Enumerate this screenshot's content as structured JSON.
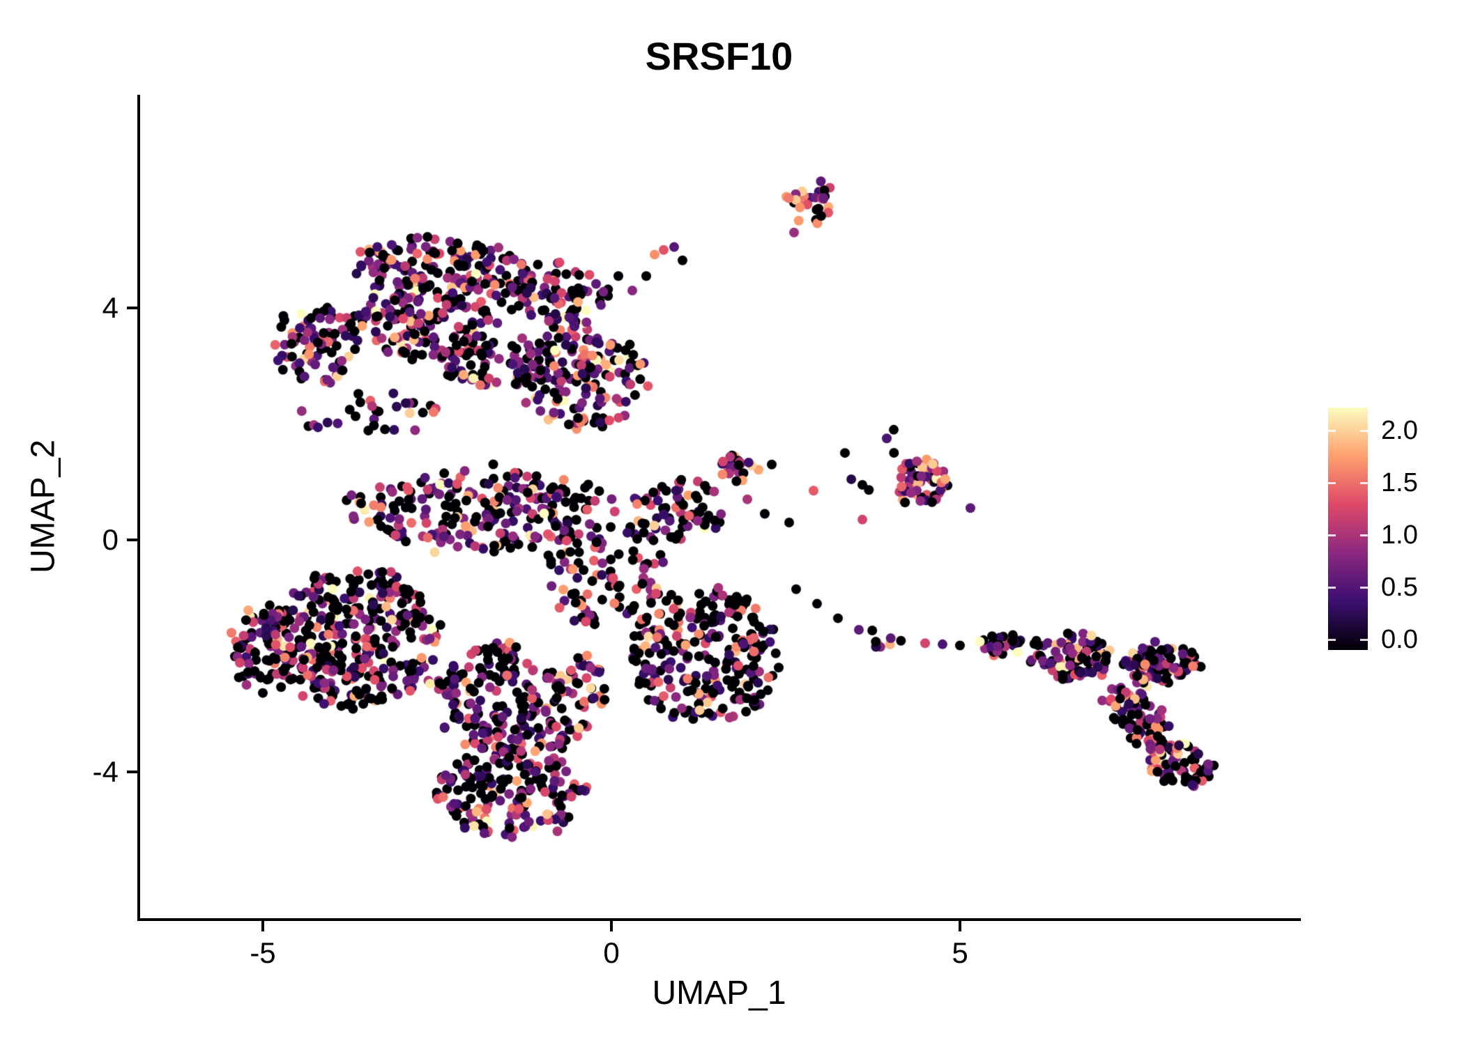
{
  "title": "SRSF10",
  "axes": {
    "x": {
      "label": "UMAP_1",
      "ticks": [
        {
          "value": -5,
          "label": "-5"
        },
        {
          "value": 0,
          "label": "0"
        },
        {
          "value": 5,
          "label": "5"
        }
      ]
    },
    "y": {
      "label": "UMAP_2",
      "ticks": [
        {
          "value": 4,
          "label": "4"
        },
        {
          "value": 0,
          "label": "0"
        },
        {
          "value": -4,
          "label": "-4"
        }
      ]
    }
  },
  "legend": {
    "ticks": [
      {
        "value": 2.0,
        "label": "2.0"
      },
      {
        "value": 1.5,
        "label": "1.5"
      },
      {
        "value": 1.0,
        "label": "1.0"
      },
      {
        "value": 0.5,
        "label": "0.5"
      },
      {
        "value": 0.0,
        "label": "0.0"
      }
    ],
    "bar_domain": [
      -0.1,
      2.22
    ]
  },
  "colors": {
    "axis": "#000000",
    "text": "#000000",
    "background": "#ffffff"
  },
  "chart_data": {
    "type": "scatter",
    "title": "SRSF10",
    "xlabel": "UMAP_1",
    "ylabel": "UMAP_2",
    "xlim": [
      -6.8,
      9.9
    ],
    "ylim": [
      -7.1,
      7.7
    ],
    "x_ticks": [
      -5,
      0,
      5
    ],
    "y_ticks": [
      -4,
      0,
      4
    ],
    "grid": false,
    "legend_position": "right",
    "point_radius_px": 7,
    "seed": 1337,
    "color_scale": {
      "name": "magma",
      "value_domain": [
        0,
        2.1
      ],
      "legend_ticks": [
        0.0,
        0.5,
        1.0,
        1.5,
        2.0
      ],
      "stops": [
        {
          "t": 0.0,
          "c": "#000004"
        },
        {
          "t": 0.2,
          "c": "#3b0f70"
        },
        {
          "t": 0.4,
          "c": "#8c2981"
        },
        {
          "t": 0.6,
          "c": "#de4968"
        },
        {
          "t": 0.8,
          "c": "#fe9f6d"
        },
        {
          "t": 1.0,
          "c": "#fcfdbf"
        }
      ]
    },
    "value_bins": [
      [
        0,
        0
      ],
      [
        0.25,
        0.9
      ],
      [
        0.9,
        1.45
      ],
      [
        1.45,
        1.9
      ],
      [
        1.9,
        2.2
      ]
    ],
    "clusters": [
      {
        "name": "upper-top-band",
        "cx": -2.4,
        "cy": 4.65,
        "rx": 1.35,
        "ry": 0.55,
        "rot": -5,
        "n": 170,
        "mix": [
          0.36,
          0.34,
          0.17,
          0.1,
          0.03
        ]
      },
      {
        "name": "upper-left-arm",
        "cx": -4.25,
        "cy": 3.35,
        "rx": 0.6,
        "ry": 0.65,
        "rot": 0,
        "n": 80,
        "mix": [
          0.36,
          0.34,
          0.17,
          0.1,
          0.03
        ]
      },
      {
        "name": "upper-mid-band",
        "cx": -2.7,
        "cy": 3.7,
        "rx": 1.2,
        "ry": 0.55,
        "rot": -8,
        "n": 130,
        "mix": [
          0.36,
          0.34,
          0.17,
          0.1,
          0.03
        ]
      },
      {
        "name": "upper-right-blob",
        "cx": -0.45,
        "cy": 2.75,
        "rx": 0.95,
        "ry": 0.85,
        "rot": 0,
        "n": 150,
        "mix": [
          0.36,
          0.34,
          0.17,
          0.1,
          0.03
        ]
      },
      {
        "name": "upper-connector",
        "cx": -1.6,
        "cy": 3.1,
        "rx": 0.9,
        "ry": 0.5,
        "rot": 0,
        "n": 70,
        "mix": [
          0.36,
          0.34,
          0.17,
          0.1,
          0.03
        ]
      },
      {
        "name": "upper-right-top",
        "cx": -0.75,
        "cy": 4.2,
        "rx": 0.8,
        "ry": 0.55,
        "rot": -20,
        "n": 80,
        "mix": [
          0.36,
          0.34,
          0.17,
          0.1,
          0.03
        ]
      },
      {
        "name": "bridge-left",
        "cx": -3.5,
        "cy": 2.15,
        "rx": 1.0,
        "ry": 0.35,
        "rot": 0,
        "n": 30,
        "mix": [
          0.44,
          0.33,
          0.14,
          0.07,
          0.02
        ]
      },
      {
        "name": "main-upper-band",
        "cx": -1.9,
        "cy": 0.55,
        "rx": 1.9,
        "ry": 0.75,
        "rot": 0,
        "n": 230,
        "mix": [
          0.44,
          0.33,
          0.14,
          0.07,
          0.02
        ]
      },
      {
        "name": "main-left-mass",
        "cx": -3.7,
        "cy": -1.7,
        "rx": 1.25,
        "ry": 1.2,
        "rot": 0,
        "n": 340,
        "mix": [
          0.44,
          0.33,
          0.14,
          0.07,
          0.02
        ]
      },
      {
        "name": "main-center-mass",
        "cx": -1.3,
        "cy": -2.7,
        "rx": 1.3,
        "ry": 1.0,
        "rot": 0,
        "n": 270,
        "mix": [
          0.44,
          0.33,
          0.14,
          0.07,
          0.02
        ]
      },
      {
        "name": "main-bottom",
        "cx": -1.5,
        "cy": -4.35,
        "rx": 1.15,
        "ry": 0.75,
        "rot": 0,
        "n": 170,
        "mix": [
          0.44,
          0.33,
          0.14,
          0.07,
          0.02
        ]
      },
      {
        "name": "main-right-lobe",
        "cx": 1.35,
        "cy": -2.0,
        "rx": 1.05,
        "ry": 1.15,
        "rot": 0,
        "n": 250,
        "mix": [
          0.54,
          0.26,
          0.12,
          0.06,
          0.02
        ]
      },
      {
        "name": "main-right-tip",
        "cx": 0.95,
        "cy": 0.5,
        "rx": 0.7,
        "ry": 0.55,
        "rot": 0,
        "n": 70,
        "mix": [
          0.44,
          0.33,
          0.14,
          0.07,
          0.02
        ]
      },
      {
        "name": "main-mid-fill",
        "cx": -0.1,
        "cy": -0.6,
        "rx": 0.9,
        "ry": 0.9,
        "rot": 0,
        "n": 90,
        "mix": [
          0.44,
          0.33,
          0.14,
          0.07,
          0.02
        ]
      },
      {
        "name": "main-left-edge",
        "cx": -4.9,
        "cy": -1.9,
        "rx": 0.5,
        "ry": 0.8,
        "rot": 0,
        "n": 80,
        "mix": [
          0.44,
          0.33,
          0.14,
          0.07,
          0.02
        ]
      },
      {
        "name": "top-small",
        "cx": 2.85,
        "cy": 5.85,
        "rx": 0.3,
        "ry": 0.42,
        "rot": 0,
        "n": 30,
        "mix": [
          0.22,
          0.18,
          0.25,
          0.28,
          0.07
        ]
      },
      {
        "name": "mid-small",
        "cx": 1.85,
        "cy": 1.2,
        "rx": 0.25,
        "ry": 0.35,
        "rot": 0,
        "n": 24,
        "mix": [
          0.3,
          0.27,
          0.25,
          0.18,
          0.0
        ]
      },
      {
        "name": "right-mid-blob",
        "cx": 4.45,
        "cy": 1.0,
        "rx": 0.4,
        "ry": 0.38,
        "rot": 0,
        "n": 55,
        "mix": [
          0.22,
          0.28,
          0.25,
          0.2,
          0.05
        ]
      },
      {
        "name": "right-mid-scatter",
        "cx": 3.95,
        "cy": 1.05,
        "rx": 0.55,
        "ry": 0.5,
        "rot": 0,
        "n": 10,
        "mix": [
          0.3,
          0.27,
          0.25,
          0.18,
          0.0
        ]
      },
      {
        "name": "chain-pair",
        "cx": 3.88,
        "cy": -1.72,
        "rx": 0.28,
        "ry": 0.16,
        "rot": 0,
        "n": 8,
        "mix": [
          0.45,
          0.3,
          0.15,
          0.1,
          0.0
        ]
      },
      {
        "name": "right-arm-start",
        "cx": 5.6,
        "cy": -1.8,
        "rx": 0.33,
        "ry": 0.2,
        "rot": 0,
        "n": 30,
        "mix": [
          0.46,
          0.32,
          0.13,
          0.07,
          0.02
        ]
      },
      {
        "name": "right-arm-mid",
        "cx": 6.6,
        "cy": -2.0,
        "rx": 0.6,
        "ry": 0.38,
        "rot": -5,
        "n": 100,
        "mix": [
          0.46,
          0.32,
          0.13,
          0.07,
          0.02
        ]
      },
      {
        "name": "right-arm-east",
        "cx": 7.9,
        "cy": -2.15,
        "rx": 0.55,
        "ry": 0.33,
        "rot": 10,
        "n": 80,
        "mix": [
          0.46,
          0.32,
          0.13,
          0.07,
          0.02
        ]
      },
      {
        "name": "right-arm-descent",
        "cx": 7.55,
        "cy": -3.05,
        "rx": 0.65,
        "ry": 0.33,
        "rot": -55,
        "n": 80,
        "mix": [
          0.46,
          0.32,
          0.13,
          0.07,
          0.02
        ]
      },
      {
        "name": "right-arm-tip",
        "cx": 8.15,
        "cy": -3.85,
        "rx": 0.5,
        "ry": 0.35,
        "rot": -20,
        "n": 70,
        "mix": [
          0.46,
          0.32,
          0.13,
          0.07,
          0.02
        ]
      }
    ],
    "holes": [
      {
        "cx": -0.85,
        "cy": -1.75,
        "rx": 0.42,
        "ry": 0.48
      }
    ],
    "extra_points": [
      [
        0.5,
        4.55,
        0
      ],
      [
        0.75,
        5.0,
        1.3
      ],
      [
        0.62,
        4.92,
        1.6
      ],
      [
        0.9,
        5.05,
        0.55
      ],
      [
        1.02,
        4.82,
        0
      ],
      [
        0.3,
        4.3,
        0.8
      ],
      [
        0.1,
        4.55,
        0
      ],
      [
        -0.15,
        4.05,
        0.6
      ],
      [
        2.62,
        5.3,
        0.9
      ],
      [
        2.55,
        0.3,
        0
      ],
      [
        2.9,
        0.85,
        1.35
      ],
      [
        3.35,
        1.5,
        0
      ],
      [
        3.6,
        0.35,
        1.2
      ],
      [
        5.15,
        0.55,
        0.6
      ],
      [
        4.05,
        1.9,
        0
      ],
      [
        3.95,
        1.75,
        0.5
      ],
      [
        2.65,
        -0.85,
        0
      ],
      [
        2.95,
        -1.1,
        0
      ],
      [
        3.25,
        -1.35,
        0
      ],
      [
        3.55,
        -1.55,
        0.6
      ],
      [
        4.5,
        -1.78,
        1.2
      ],
      [
        4.75,
        -1.8,
        0.5
      ],
      [
        5.0,
        -1.82,
        0
      ],
      [
        1.95,
        0.7,
        1.0
      ],
      [
        2.2,
        0.45,
        0
      ],
      [
        -5.45,
        -1.6,
        1.5
      ],
      [
        1.6,
        1.35,
        1.2
      ],
      [
        2.3,
        1.3,
        0
      ]
    ]
  }
}
